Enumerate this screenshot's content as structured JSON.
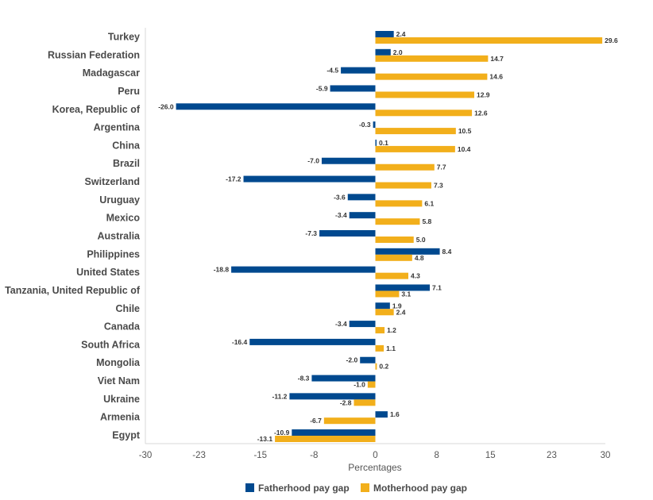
{
  "chart_data": {
    "type": "bar",
    "orientation": "horizontal",
    "title": "",
    "xlabel": "Percentages",
    "ylabel": "",
    "xlim": [
      -30,
      30
    ],
    "xticks": [
      -30,
      -23,
      -15,
      -8,
      0,
      8,
      15,
      23,
      30
    ],
    "xtick_labels": [
      "-30",
      "-23",
      "-15",
      "-8",
      "0",
      "8",
      "15",
      "23",
      "30"
    ],
    "grid": false,
    "legend_position": "bottom-center",
    "categories": [
      "Turkey",
      "Russian Federation",
      "Madagascar",
      "Peru",
      "Korea, Republic of",
      "Argentina",
      "China",
      "Brazil",
      "Switzerland",
      "Uruguay",
      "Mexico",
      "Australia",
      "Philippines",
      "United States",
      "Tanzania, United Republic of",
      "Chile",
      "Canada",
      "South Africa",
      "Mongolia",
      "Viet Nam",
      "Ukraine",
      "Armenia",
      "Egypt"
    ],
    "series": [
      {
        "name": "Fatherhood pay gap",
        "color": "#00498f",
        "values": [
          2.4,
          2.0,
          -4.5,
          -5.9,
          -26.0,
          -0.3,
          0.1,
          -7.0,
          -17.2,
          -3.6,
          -3.4,
          -7.3,
          8.4,
          -18.8,
          7.1,
          1.9,
          -3.4,
          -16.4,
          -2.0,
          -8.3,
          -11.2,
          1.6,
          -10.9
        ]
      },
      {
        "name": "Motherhood pay gap",
        "color": "#f2af1b",
        "values": [
          29.6,
          14.7,
          14.6,
          12.9,
          12.6,
          10.5,
          10.4,
          7.7,
          7.3,
          6.1,
          5.8,
          5.0,
          4.8,
          4.3,
          3.1,
          2.4,
          1.2,
          1.1,
          0.2,
          -1.0,
          -2.8,
          -6.7,
          -13.1
        ]
      }
    ]
  }
}
